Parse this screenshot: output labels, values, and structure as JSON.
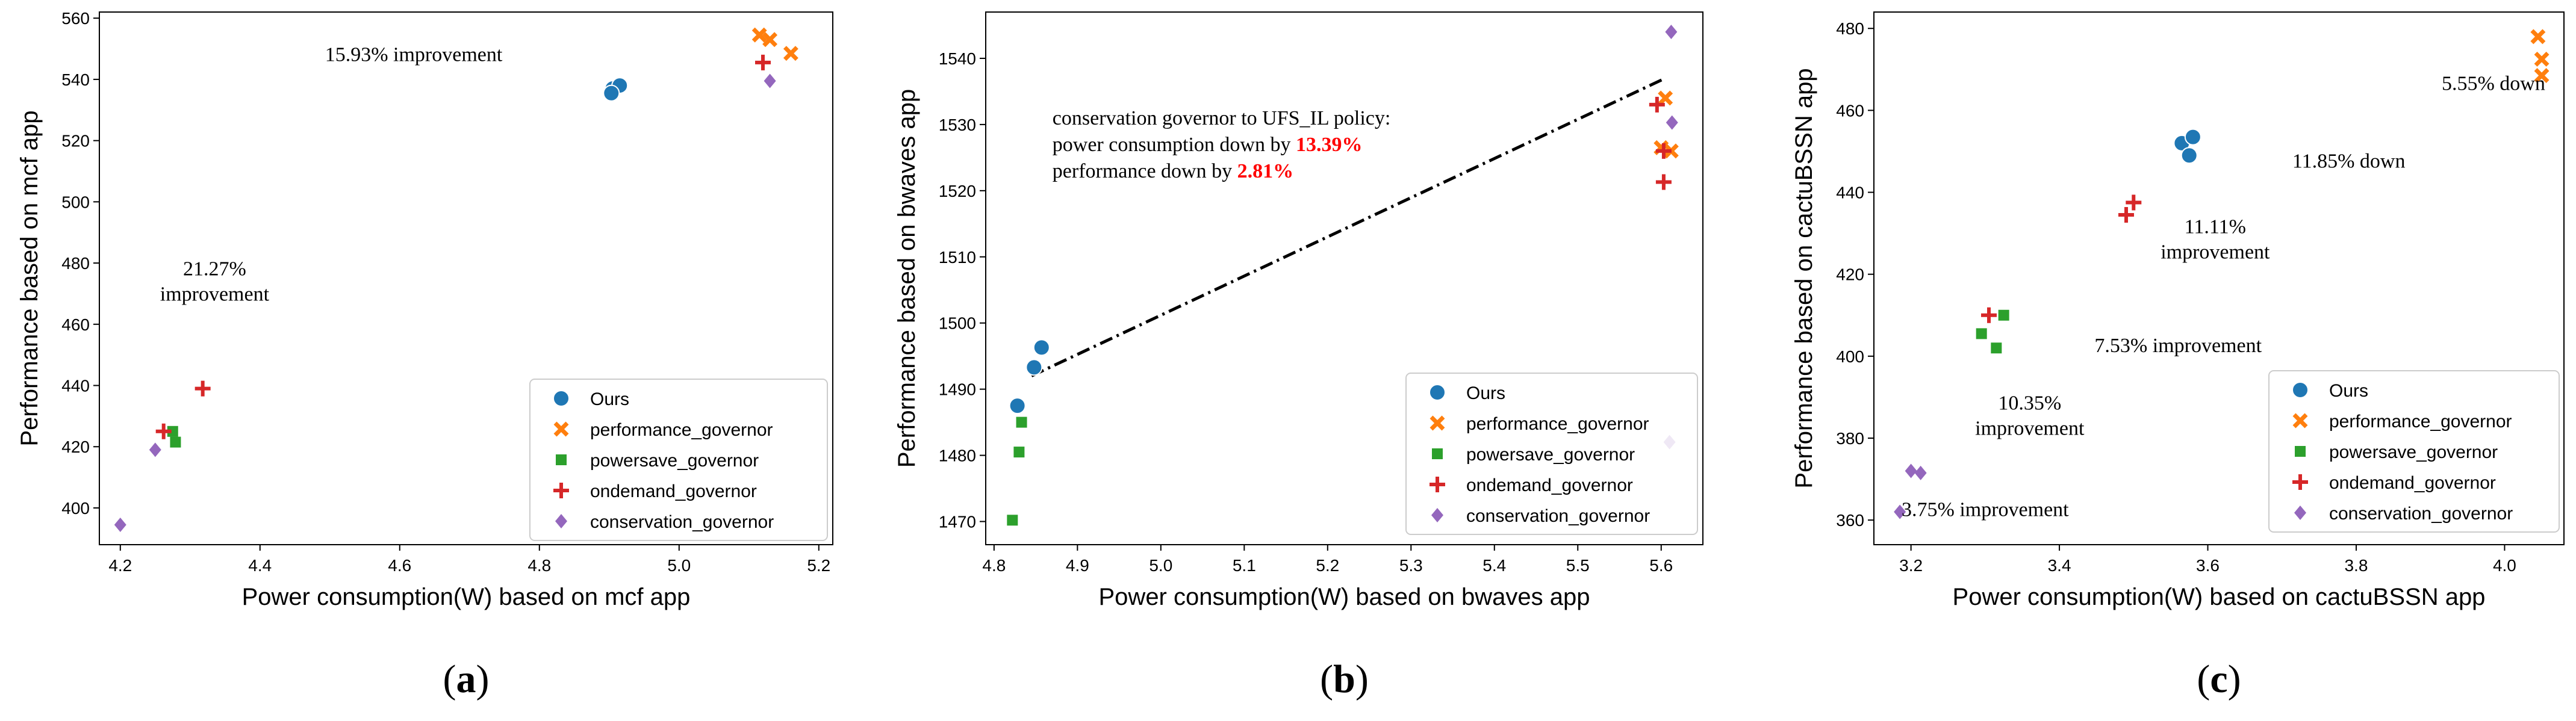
{
  "colors": {
    "ours": "#1f77b4",
    "performance_governor": "#ff7f0e",
    "powersave_governor": "#2ca02c",
    "ondemand_governor": "#d62728",
    "conservation_governor": "#9467bd",
    "highlight": "#ff0000"
  },
  "legend_labels": {
    "ours": "Ours",
    "performance_governor": "performance_governor",
    "powersave_governor": "powersave_governor",
    "ondemand_governor": "ondemand_governor",
    "conservation_governor": "conservation_governor"
  },
  "chart_data": [
    {
      "type": "scatter",
      "panel_label": "(a)",
      "panel_letter": "a",
      "xlabel": "Power consumption(W) based on mcf app",
      "ylabel": "Performance based on mcf app",
      "xlim": [
        4.17,
        5.22
      ],
      "ylim": [
        388,
        562
      ],
      "xticks": [
        4.2,
        4.4,
        4.6,
        4.8,
        5.0,
        5.2
      ],
      "xtick_labels": [
        "4.2",
        "4.4",
        "4.6",
        "4.8",
        "5.0",
        "5.2"
      ],
      "yticks": [
        400,
        420,
        440,
        460,
        480,
        500,
        520,
        540,
        560
      ],
      "ytick_labels": [
        "400",
        "420",
        "440",
        "460",
        "480",
        "500",
        "520",
        "540",
        "560"
      ],
      "legend_position": "lower-right",
      "series": [
        {
          "key": "ours",
          "marker": "circle",
          "x": [
            4.905,
            4.915,
            4.903
          ],
          "y": [
            537,
            538,
            535.5
          ]
        },
        {
          "key": "performance_governor",
          "marker": "x",
          "x": [
            5.115,
            5.13,
            5.16
          ],
          "y": [
            554.5,
            553,
            548.5
          ]
        },
        {
          "key": "powersave_governor",
          "marker": "square",
          "x": [
            4.275,
            4.279
          ],
          "y": [
            425,
            421.5
          ]
        },
        {
          "key": "ondemand_governor",
          "marker": "plus",
          "x": [
            4.262,
            4.318,
            5.12
          ],
          "y": [
            425,
            439,
            545.5
          ]
        },
        {
          "key": "conservation_governor",
          "marker": "diamond",
          "x": [
            4.2,
            4.25,
            5.13
          ],
          "y": [
            394.5,
            419,
            539.5
          ]
        }
      ],
      "annotations": [
        {
          "lines": [
            "15.93% improvement"
          ],
          "x": 4.62,
          "y": 546
        },
        {
          "lines": [
            "21.27%",
            "improvement"
          ],
          "x": 4.335,
          "y": 476
        }
      ]
    },
    {
      "type": "scatter",
      "panel_label": "(b)",
      "panel_letter": "b",
      "xlabel": "Power consumption(W) based on bwaves app",
      "ylabel": "Performance based on bwaves app",
      "xlim": [
        4.79,
        5.65
      ],
      "ylim": [
        1466.5,
        1547
      ],
      "xticks": [
        4.8,
        4.9,
        5.0,
        5.1,
        5.2,
        5.3,
        5.4,
        5.5,
        5.6
      ],
      "xtick_labels": [
        "4.8",
        "4.9",
        "5.0",
        "5.1",
        "5.2",
        "5.3",
        "5.4",
        "5.5",
        "5.6"
      ],
      "yticks": [
        1470,
        1480,
        1490,
        1500,
        1510,
        1520,
        1530,
        1540
      ],
      "ytick_labels": [
        "1470",
        "1480",
        "1490",
        "1500",
        "1510",
        "1520",
        "1530",
        "1540"
      ],
      "legend_position": "lower-right",
      "trend_line": {
        "x": [
          4.845,
          5.605
        ],
        "y": [
          1492,
          1537
        ]
      },
      "series": [
        {
          "key": "ours",
          "marker": "circle",
          "x": [
            4.828,
            4.848,
            4.857
          ],
          "y": [
            1487.5,
            1493.3,
            1496.3
          ]
        },
        {
          "key": "performance_governor",
          "marker": "x",
          "x": [
            5.6,
            5.612,
            5.605
          ],
          "y": [
            1526.5,
            1526,
            1534
          ]
        },
        {
          "key": "powersave_governor",
          "marker": "square",
          "x": [
            4.822,
            4.83,
            4.833
          ],
          "y": [
            1470.2,
            1480.5,
            1485
          ]
        },
        {
          "key": "ondemand_governor",
          "marker": "plus",
          "x": [
            5.595,
            5.603,
            5.603
          ],
          "y": [
            1533,
            1526,
            1521.3
          ]
        },
        {
          "key": "conservation_governor",
          "marker": "diamond",
          "x": [
            5.612,
            5.613,
            5.61
          ],
          "y": [
            1544,
            1530.3,
            1482
          ]
        }
      ],
      "annotation": {
        "line1": "conservation governor to UFS_IL policy:",
        "line2_prefix": "power consumption down by ",
        "line2_value": "13.39%",
        "line3_prefix": "performance down by ",
        "line3_value": "2.81%",
        "x": 4.87,
        "y": 1530
      }
    },
    {
      "type": "scatter",
      "panel_label": "(c)",
      "panel_letter": "c",
      "xlabel": "Power consumption(W) based on cactuBSSN app",
      "ylabel": "Performance based on cactuBSSN app",
      "xlim": [
        3.15,
        4.08
      ],
      "ylim": [
        354,
        484
      ],
      "xticks": [
        3.2,
        3.4,
        3.6,
        3.8,
        4.0
      ],
      "xtick_labels": [
        "3.2",
        "3.4",
        "3.6",
        "3.8",
        "4.0"
      ],
      "yticks": [
        360,
        380,
        400,
        420,
        440,
        460,
        480
      ],
      "ytick_labels": [
        "360",
        "380",
        "400",
        "420",
        "440",
        "460",
        "480"
      ],
      "legend_position": "lower-right",
      "series": [
        {
          "key": "ours",
          "marker": "circle",
          "x": [
            3.565,
            3.58,
            3.575
          ],
          "y": [
            452,
            453.5,
            449
          ]
        },
        {
          "key": "performance_governor",
          "marker": "x",
          "x": [
            4.045,
            4.05,
            4.05
          ],
          "y": [
            478,
            472.5,
            468.5
          ]
        },
        {
          "key": "powersave_governor",
          "marker": "square",
          "x": [
            3.295,
            3.315,
            3.325
          ],
          "y": [
            405.5,
            402,
            410
          ]
        },
        {
          "key": "ondemand_governor",
          "marker": "plus",
          "x": [
            3.305,
            3.49,
            3.5
          ],
          "y": [
            410,
            434.5,
            437.5
          ]
        },
        {
          "key": "conservation_governor",
          "marker": "diamond",
          "x": [
            3.185,
            3.2,
            3.213
          ],
          "y": [
            362,
            372,
            371.5
          ]
        }
      ],
      "annotations": [
        {
          "lines": [
            "5.55% down"
          ],
          "x": 3.985,
          "y": 465
        },
        {
          "lines": [
            "11.85% down"
          ],
          "x": 3.79,
          "y": 446
        },
        {
          "lines": [
            "11.11%",
            "improvement"
          ],
          "x": 3.61,
          "y": 430
        },
        {
          "lines": [
            "7.53% improvement"
          ],
          "x": 3.56,
          "y": 401
        },
        {
          "lines": [
            "10.35%",
            "improvement"
          ],
          "x": 3.36,
          "y": 387
        },
        {
          "lines": [
            "3.75% improvement"
          ],
          "x": 3.3,
          "y": 361
        }
      ]
    }
  ]
}
